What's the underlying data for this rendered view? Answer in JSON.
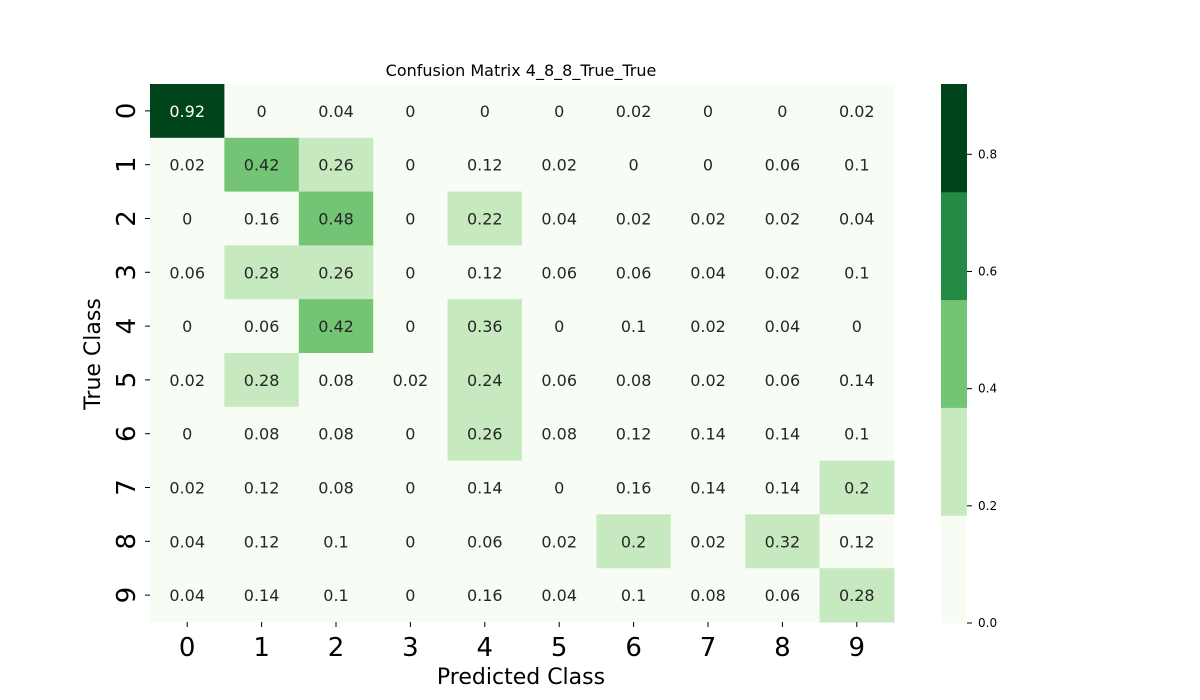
{
  "chart_data": {
    "type": "heatmap",
    "title": "Confusion Matrix 4_8_8_True_True",
    "xlabel": "Predicted Class",
    "ylabel": "True Class",
    "x_categories": [
      "0",
      "1",
      "2",
      "3",
      "4",
      "5",
      "6",
      "7",
      "8",
      "9"
    ],
    "y_categories": [
      "0",
      "1",
      "2",
      "3",
      "4",
      "5",
      "6",
      "7",
      "8",
      "9"
    ],
    "values": [
      [
        0.92,
        0,
        0.04,
        0,
        0,
        0,
        0.02,
        0,
        0,
        0.02
      ],
      [
        0.02,
        0.42,
        0.26,
        0,
        0.12,
        0.02,
        0,
        0,
        0.06,
        0.1
      ],
      [
        0,
        0.16,
        0.48,
        0,
        0.22,
        0.04,
        0.02,
        0.02,
        0.02,
        0.04
      ],
      [
        0.06,
        0.28,
        0.26,
        0,
        0.12,
        0.06,
        0.06,
        0.04,
        0.02,
        0.1
      ],
      [
        0,
        0.06,
        0.42,
        0,
        0.36,
        0,
        0.1,
        0.02,
        0.04,
        0
      ],
      [
        0.02,
        0.28,
        0.08,
        0.02,
        0.24,
        0.06,
        0.08,
        0.02,
        0.06,
        0.14
      ],
      [
        0,
        0.08,
        0.08,
        0,
        0.26,
        0.08,
        0.12,
        0.14,
        0.14,
        0.1
      ],
      [
        0.02,
        0.12,
        0.08,
        0,
        0.14,
        0,
        0.16,
        0.14,
        0.14,
        0.2
      ],
      [
        0.04,
        0.12,
        0.1,
        0,
        0.06,
        0.02,
        0.2,
        0.02,
        0.32,
        0.12
      ],
      [
        0.04,
        0.14,
        0.1,
        0,
        0.16,
        0.04,
        0.1,
        0.08,
        0.06,
        0.28
      ]
    ],
    "colorbar": {
      "range": [
        0,
        0.92
      ],
      "ticks": [
        "0.0",
        "0.2",
        "0.4",
        "0.6",
        "0.8"
      ],
      "bins": [
        {
          "from": 0,
          "to": 0.184,
          "color": "#f7fcf5"
        },
        {
          "from": 0.184,
          "to": 0.368,
          "color": "#c7e9c0"
        },
        {
          "from": 0.368,
          "to": 0.552,
          "color": "#74c476"
        },
        {
          "from": 0.552,
          "to": 0.736,
          "color": "#238b45"
        },
        {
          "from": 0.736,
          "to": 0.92,
          "color": "#00441b"
        }
      ]
    },
    "grid": false
  }
}
